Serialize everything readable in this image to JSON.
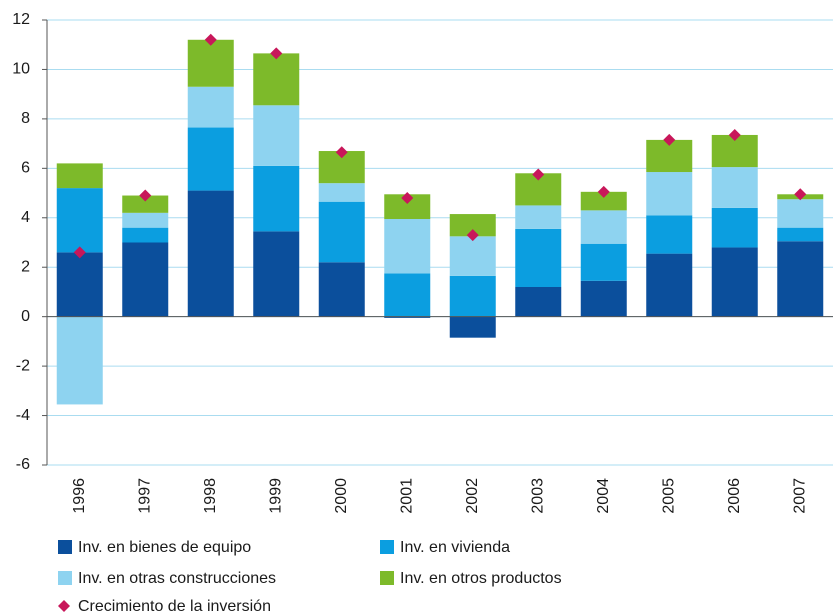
{
  "chart_data": {
    "type": "bar",
    "stacked": true,
    "categories": [
      "1996",
      "1997",
      "1998",
      "1999",
      "2000",
      "2001",
      "2002",
      "2003",
      "2004",
      "2005",
      "2006",
      "2007"
    ],
    "series": [
      {
        "name": "Inv. en bienes de equipo",
        "color": "#0b4f9c",
        "values": [
          2.6,
          3.0,
          5.1,
          3.45,
          2.2,
          -0.05,
          -0.85,
          1.2,
          1.45,
          2.55,
          2.8,
          3.05
        ]
      },
      {
        "name": "Inv. en vivienda",
        "color": "#0b9ee0",
        "values": [
          2.6,
          0.6,
          2.55,
          2.65,
          2.45,
          1.75,
          1.65,
          2.35,
          1.5,
          1.55,
          1.6,
          0.55
        ]
      },
      {
        "name": "Inv. en otras construcciones",
        "color": "#8ed3f0",
        "values": [
          -3.55,
          0.6,
          1.65,
          2.45,
          0.75,
          2.2,
          1.6,
          0.95,
          1.35,
          1.75,
          1.65,
          1.15
        ]
      },
      {
        "name": "Inv. en otros productos",
        "color": "#7dba2a",
        "values": [
          1.0,
          0.7,
          1.9,
          2.1,
          1.3,
          1.0,
          0.9,
          1.3,
          0.75,
          1.3,
          1.3,
          0.2
        ]
      },
      {
        "name": "Crecimiento de la inversión",
        "type": "scatter",
        "marker": "diamond",
        "color": "#c8175a",
        "values": [
          2.6,
          4.9,
          11.2,
          10.65,
          6.65,
          4.8,
          3.3,
          5.75,
          5.05,
          7.15,
          7.35,
          4.95
        ]
      }
    ],
    "ylim": [
      -6,
      12
    ],
    "yticks": [
      -6,
      -4,
      -2,
      0,
      2,
      4,
      6,
      8,
      10,
      12
    ],
    "grid": true
  }
}
